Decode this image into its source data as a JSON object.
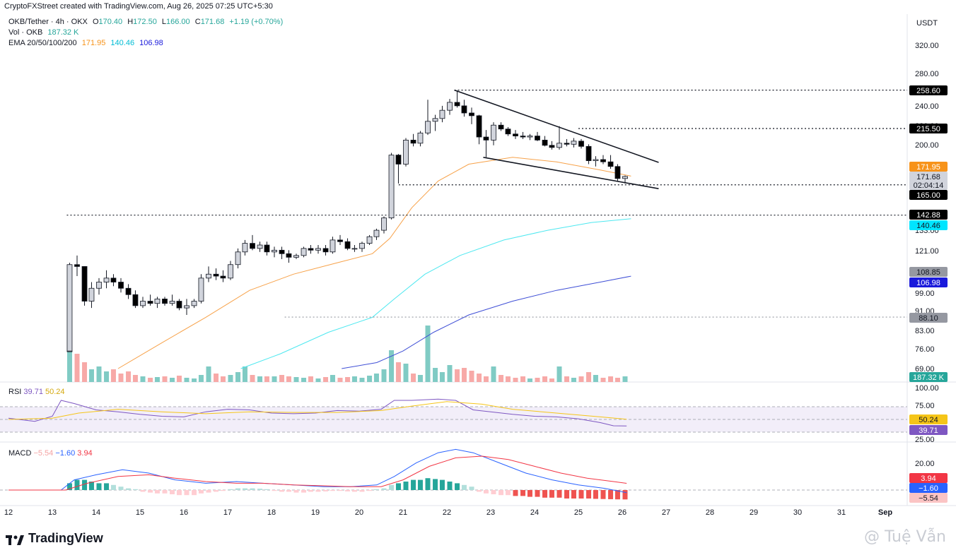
{
  "header": {
    "created_text": "CryptoFXStreet created with TradingView.com, Aug 26, 2025 07:25 UTC+5:30"
  },
  "legend": {
    "symbol": "OKB/Tether · 4h · OKX",
    "o_label": "O",
    "o_val": "170.40",
    "h_label": "H",
    "h_val": "172.50",
    "l_label": "L",
    "l_val": "166.00",
    "c_label": "C",
    "c_val": "171.68",
    "change": "+1.19 (+0.70%)",
    "vol_label": "Vol · OKB",
    "vol_val": "187.32 K",
    "ema_label": "EMA 20/50/100/200",
    "ema20": "171.95",
    "ema50": "140.46",
    "ema100": "106.98"
  },
  "rsi_legend": {
    "label": "RSI",
    "rsi": "39.71",
    "ma": "50.24"
  },
  "macd_legend": {
    "label": "MACD",
    "hist": "−5.54",
    "macd": "−1.60",
    "signal": "3.94"
  },
  "colors": {
    "up": "#26a69a",
    "down": "#ef5350",
    "candle_up": "#d1d4dc",
    "candle_down": "#000000",
    "ema20": "#f7a24a",
    "ema50": "#4de8f0",
    "ema100": "#3f4fd6",
    "rsi": "#7e57c2",
    "rsi_ma": "#f5c518",
    "macd": "#2962ff",
    "signal": "#f23645"
  },
  "price_axis": {
    "currency": "USDT",
    "ticks": [
      "320.00",
      "280.00",
      "240.00",
      "200.00",
      "121.00",
      "99.00",
      "91.00",
      "83.00",
      "76.00",
      "69.00"
    ],
    "partial_ticks": [
      "220.00",
      "133.00"
    ],
    "tags": [
      {
        "text": "258.60",
        "bg": "#000000",
        "fg": "#ffffff"
      },
      {
        "text": "215.50",
        "bg": "#000000",
        "fg": "#ffffff"
      },
      {
        "text": "171.95",
        "bg": "#f7931a",
        "fg": "#ffffff"
      },
      {
        "text": "171.68",
        "bg": "#d1d4dc",
        "fg": "#131722"
      },
      {
        "text": "02:04:14",
        "bg": "#d1d4dc",
        "fg": "#131722"
      },
      {
        "text": "165.00",
        "bg": "#000000",
        "fg": "#ffffff"
      },
      {
        "text": "142.88",
        "bg": "#000000",
        "fg": "#ffffff"
      },
      {
        "text": "140.46",
        "bg": "#00e5ff",
        "fg": "#131722"
      },
      {
        "text": "108.85",
        "bg": "#9598a1",
        "fg": "#131722"
      },
      {
        "text": "106.98",
        "bg": "#1a1adb",
        "fg": "#ffffff"
      },
      {
        "text": "88.10",
        "bg": "#9598a1",
        "fg": "#131722"
      },
      {
        "text": "187.32 K",
        "bg": "#26a69a",
        "fg": "#ffffff"
      }
    ]
  },
  "rsi_axis": {
    "ticks": [
      "100.00",
      "75.00",
      "25.00"
    ],
    "tags": [
      {
        "text": "50.24",
        "bg": "#f5c518",
        "fg": "#131722"
      },
      {
        "text": "39.71",
        "bg": "#7e57c2",
        "fg": "#ffffff"
      }
    ]
  },
  "macd_axis": {
    "ticks": [
      "20.00"
    ],
    "tags": [
      {
        "text": "3.94",
        "bg": "#f23645",
        "fg": "#ffffff"
      },
      {
        "text": "−1.60",
        "bg": "#2962ff",
        "fg": "#ffffff"
      },
      {
        "text": "−5.54",
        "bg": "#fbc4c4",
        "fg": "#131722"
      }
    ]
  },
  "time_axis": {
    "labels": [
      "12",
      "13",
      "14",
      "15",
      "16",
      "17",
      "18",
      "19",
      "20",
      "21",
      "22",
      "23",
      "24",
      "25",
      "26",
      "27",
      "28",
      "29",
      "30",
      "31",
      "Sep"
    ]
  },
  "footer": {
    "logo_text": "TradingView",
    "watermark": "@ Tuệ Vẫn"
  },
  "chart_data": {
    "type": "candlestick",
    "timeframe": "4h",
    "ylim": [
      66,
      335
    ],
    "y_scale": "log",
    "x_start_day": 12,
    "candles_per_day": 6,
    "candles": [
      [
        13.33,
        75,
        75,
        75,
        75
      ],
      [
        13.33,
        75,
        114,
        75,
        113
      ],
      [
        13.5,
        113,
        118,
        107,
        112
      ],
      [
        13.67,
        112,
        112,
        93,
        95
      ],
      [
        13.83,
        95,
        104,
        92,
        101
      ],
      [
        14.0,
        101,
        106,
        98,
        104
      ],
      [
        14.17,
        104,
        110,
        101,
        106
      ],
      [
        14.33,
        106,
        108,
        102,
        104
      ],
      [
        14.5,
        104,
        106,
        99,
        101
      ],
      [
        14.67,
        101,
        103,
        96,
        98
      ],
      [
        14.83,
        98,
        100,
        92,
        93
      ],
      [
        15.0,
        93,
        97,
        92,
        95
      ],
      [
        15.17,
        95,
        98,
        93,
        94
      ],
      [
        15.33,
        94,
        97,
        92,
        96
      ],
      [
        15.5,
        96,
        97,
        93,
        94
      ],
      [
        15.67,
        94,
        98,
        93,
        95
      ],
      [
        15.83,
        95,
        96,
        91,
        92
      ],
      [
        16.0,
        92,
        96,
        89,
        93
      ],
      [
        16.17,
        93,
        96,
        92,
        95
      ],
      [
        16.33,
        95,
        108,
        94,
        106
      ],
      [
        16.5,
        106,
        112,
        104,
        108
      ],
      [
        16.67,
        108,
        111,
        105,
        107
      ],
      [
        16.83,
        107,
        110,
        104,
        106
      ],
      [
        17.0,
        106,
        115,
        105,
        113
      ],
      [
        17.17,
        113,
        122,
        111,
        120
      ],
      [
        17.33,
        120,
        127,
        118,
        125
      ],
      [
        17.5,
        125,
        130,
        121,
        122
      ],
      [
        17.67,
        122,
        126,
        120,
        124
      ],
      [
        17.83,
        124,
        126,
        118,
        120
      ],
      [
        18.0,
        120,
        123,
        117,
        121
      ],
      [
        18.17,
        121,
        123,
        116,
        119
      ],
      [
        18.33,
        119,
        121,
        114,
        117
      ],
      [
        18.5,
        117,
        119,
        116,
        118
      ],
      [
        18.67,
        118,
        123,
        117,
        122
      ],
      [
        18.83,
        122,
        124,
        119,
        121
      ],
      [
        19.0,
        121,
        124,
        119,
        122
      ],
      [
        19.17,
        122,
        124,
        118,
        120
      ],
      [
        19.33,
        120,
        129,
        119,
        127
      ],
      [
        19.5,
        127,
        130,
        124,
        126
      ],
      [
        19.67,
        126,
        128,
        121,
        122
      ],
      [
        19.83,
        122,
        124,
        120,
        122
      ],
      [
        20.0,
        122,
        126,
        120,
        125
      ],
      [
        20.17,
        125,
        130,
        124,
        129
      ],
      [
        20.33,
        129,
        134,
        127,
        133
      ],
      [
        20.5,
        133,
        142,
        131,
        141
      ],
      [
        20.67,
        141,
        192,
        140,
        190
      ],
      [
        20.83,
        190,
        191,
        166,
        182
      ],
      [
        21.0,
        182,
        206,
        180,
        204
      ],
      [
        21.17,
        204,
        210,
        198,
        201
      ],
      [
        21.33,
        201,
        213,
        198,
        211
      ],
      [
        21.5,
        211,
        247,
        209,
        223
      ],
      [
        21.67,
        223,
        230,
        213,
        226
      ],
      [
        21.83,
        226,
        240,
        222,
        235
      ],
      [
        22.0,
        235,
        248,
        230,
        244
      ],
      [
        22.17,
        244,
        258,
        238,
        240
      ],
      [
        22.33,
        240,
        247,
        228,
        232
      ],
      [
        22.5,
        232,
        238,
        220,
        229
      ],
      [
        22.67,
        229,
        230,
        200,
        207
      ],
      [
        22.83,
        207,
        214,
        188,
        204
      ],
      [
        23.0,
        204,
        222,
        199,
        219
      ],
      [
        23.17,
        219,
        222,
        213,
        215
      ],
      [
        23.33,
        215,
        217,
        208,
        210
      ],
      [
        23.5,
        210,
        214,
        205,
        208
      ],
      [
        23.67,
        208,
        212,
        205,
        207
      ],
      [
        23.83,
        207,
        210,
        204,
        208
      ],
      [
        24.0,
        208,
        212,
        203,
        204
      ],
      [
        24.17,
        204,
        208,
        198,
        199
      ],
      [
        24.33,
        199,
        203,
        195,
        197
      ],
      [
        24.5,
        197,
        218,
        195,
        201
      ],
      [
        24.67,
        201,
        205,
        198,
        200
      ],
      [
        24.83,
        200,
        206,
        197,
        203
      ],
      [
        25.0,
        203,
        205,
        196,
        198
      ],
      [
        25.17,
        198,
        200,
        182,
        185
      ],
      [
        25.33,
        185,
        189,
        180,
        186
      ],
      [
        25.5,
        186,
        190,
        182,
        184
      ],
      [
        25.67,
        184,
        190,
        178,
        180
      ],
      [
        25.83,
        180,
        182,
        168,
        170
      ],
      [
        26.0,
        170,
        172.5,
        166,
        171.68
      ]
    ],
    "volume": [
      2,
      70,
      40,
      28,
      18,
      22,
      15,
      18,
      12,
      15,
      10,
      8,
      6,
      7,
      8,
      6,
      9,
      6,
      5,
      10,
      22,
      12,
      8,
      10,
      14,
      22,
      10,
      8,
      8,
      8,
      10,
      8,
      7,
      6,
      8,
      5,
      7,
      10,
      6,
      7,
      8,
      6,
      9,
      12,
      18,
      45,
      28,
      26,
      12,
      10,
      80,
      20,
      14,
      24,
      18,
      20,
      16,
      12,
      8,
      22,
      10,
      8,
      6,
      8,
      5,
      6,
      8,
      5,
      22,
      8,
      6,
      8,
      14,
      10,
      6,
      8,
      6,
      8
    ],
    "ema20_last": 171.95,
    "ema50_last": 140.46,
    "ema100_last": 106.98,
    "horizontal_levels": [
      258.6,
      215.5,
      165.0,
      142.88,
      88.1
    ],
    "falling_wedge": {
      "upper": [
        [
          22.17,
          258.6
        ],
        [
          26.83,
          183.5
        ]
      ],
      "lower": [
        [
          22.83,
          188
        ],
        [
          26.83,
          162
        ]
      ]
    },
    "rsi": {
      "ylim": [
        20,
        100
      ],
      "last": 39.71,
      "ma_last": 50.24
    },
    "macd": {
      "last_macd": -1.6,
      "last_signal": 3.94,
      "last_hist": -5.54
    }
  }
}
